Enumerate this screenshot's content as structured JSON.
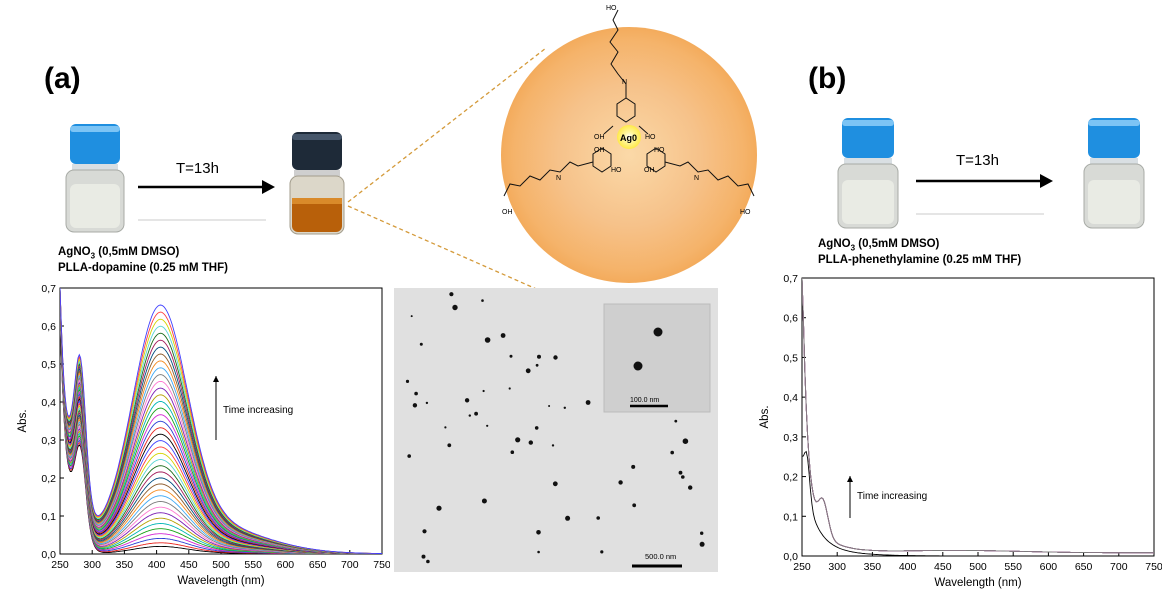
{
  "panel_a": {
    "label": "(a)",
    "reaction_time": "T=13h",
    "reagent_line1_prefix": "AgNO",
    "reagent_line1_sub": "3",
    "reagent_line1_suffix": " (0,5mM DMSO)",
    "reagent_line2": "PLLA-dopamine (0.25 mM THF)"
  },
  "panel_b": {
    "label": "(b)",
    "reaction_time": "T=13h",
    "reagent_line1_prefix": "AgNO",
    "reagent_line1_sub": "3",
    "reagent_line1_suffix": " (0,5mM DMSO)",
    "reagent_line2": "PLLA-phenethylamine (0.25 mM THF)"
  },
  "molecule": {
    "core_label": "Ag0",
    "oh_labels": [
      "HO",
      "OH",
      "HO",
      "OH",
      "HO",
      "OH",
      "HO",
      "OH",
      "HO"
    ],
    "n_labels": [
      "N",
      "N",
      "N"
    ],
    "o_labels": [
      "O",
      "O",
      "O",
      "O",
      "O",
      "O"
    ]
  },
  "tem": {
    "scale_main": "500.0 nm",
    "scale_inset": "100.0 nm"
  },
  "colors": {
    "cap_blue": "#1f8fe0",
    "solution_brown": "#b8600a",
    "glow_orange": "#f5b36a",
    "ag_yellow": "#ffe94a"
  },
  "chart_data": [
    {
      "type": "line",
      "title": "",
      "xlabel": "Wavelength (nm)",
      "ylabel": "Abs.",
      "xlim": [
        250,
        750
      ],
      "ylim": [
        0,
        0.7
      ],
      "x_ticks": [
        "250",
        "300",
        "350",
        "400",
        "450",
        "500",
        "550",
        "600",
        "650",
        "700",
        "750"
      ],
      "y_ticks": [
        "0,0",
        "0,1",
        "0,2",
        "0,3",
        "0,4",
        "0,5",
        "0,6",
        "0,7"
      ],
      "annotation": "Time increasing",
      "grid": false,
      "series_count": 40,
      "series_description": "UV-vis spectra over time; plasmon band at ~405 nm grows from ~0.02 to ~0.64",
      "peak_wavelength": 405,
      "peak_min": 0.02,
      "peak_max": 0.645,
      "shoulder_wavelength": 282,
      "shoulder_min": 0.37,
      "shoulder_max": 0.56,
      "uv_edge_start": 0.7
    },
    {
      "type": "line",
      "title": "",
      "xlabel": "Wavelength (nm)",
      "ylabel": "Abs.",
      "xlim": [
        250,
        750
      ],
      "ylim": [
        0,
        0.7
      ],
      "x_ticks": [
        "250",
        "300",
        "350",
        "400",
        "450",
        "500",
        "550",
        "600",
        "650",
        "700",
        "750"
      ],
      "y_ticks": [
        "0,0",
        "0,1",
        "0,2",
        "0,3",
        "0,4",
        "0,5",
        "0,6",
        "0,7"
      ],
      "annotation": "Time increasing",
      "grid": false,
      "series_count": 10,
      "series_description": "UV-vis spectra over time; no plasmon band, baseline near 0.01",
      "initial_peak": 0.12,
      "shoulder_wavelength": 280,
      "shoulder_value": 0.15,
      "uv_edge_start": 0.7
    }
  ]
}
